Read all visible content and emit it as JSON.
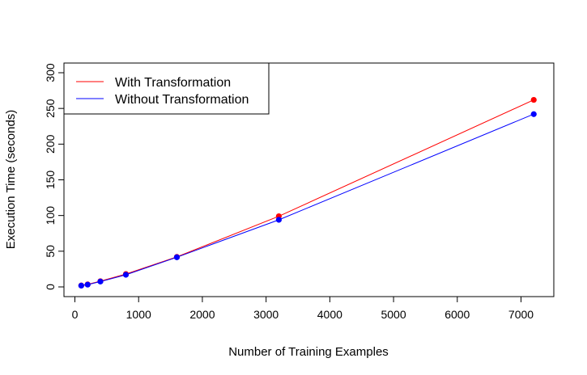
{
  "chart_data": {
    "type": "line",
    "title": "",
    "xlabel": "Number of Training Examples",
    "ylabel": "Execution Time (seconds)",
    "xlim": [
      0,
      7500
    ],
    "ylim": [
      -10,
      320
    ],
    "xticks": [
      0,
      1000,
      2000,
      3000,
      4000,
      5000,
      6000,
      7000
    ],
    "yticks": [
      0,
      50,
      100,
      150,
      200,
      250,
      300
    ],
    "xtick_labels": [
      "0",
      "1000",
      "2000",
      "3000",
      "4000",
      "5000",
      "6000",
      "7000"
    ],
    "ytick_labels": [
      "0",
      "50",
      "100",
      "150",
      "200",
      "250",
      "300"
    ],
    "grid": false,
    "legend_position": "top-left",
    "x": [
      100,
      200,
      400,
      800,
      1600,
      3200,
      7200
    ],
    "series": [
      {
        "name": "With Transformation",
        "color": "#ff0000",
        "values": [
          2,
          3.5,
          8,
          18,
          42,
          99,
          262
        ]
      },
      {
        "name": "Without Transformation",
        "color": "#0000ff",
        "values": [
          1.8,
          3.2,
          7.5,
          17,
          41.5,
          94,
          242
        ]
      }
    ]
  }
}
